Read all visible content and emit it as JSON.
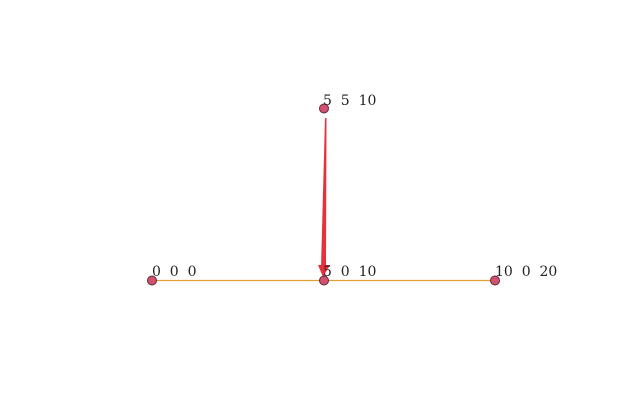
{
  "diagram": {
    "nodes": [
      {
        "id": "n0",
        "label": "0  0  0"
      },
      {
        "id": "n1",
        "label": "5  0  10"
      },
      {
        "id": "n2",
        "label": "10  0  20"
      },
      {
        "id": "n3",
        "label": "5  5  10"
      }
    ],
    "edges": [
      {
        "from": "n0",
        "to": "n1",
        "type": "line"
      },
      {
        "from": "n1",
        "to": "n2",
        "type": "line"
      },
      {
        "from": "n3",
        "to": "n1",
        "type": "arrow"
      }
    ],
    "colors": {
      "node_fill": "#d4506e",
      "node_stroke": "#5a2a3a",
      "edge": "#e0a030",
      "arrow": "#e8303a"
    }
  }
}
